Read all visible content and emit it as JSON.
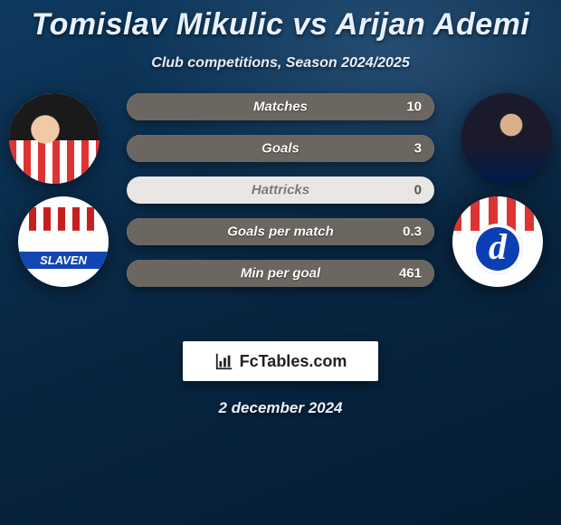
{
  "title": "Tomislav Mikulic vs Arijan Ademi",
  "subtitle": "Club competitions, Season 2024/2025",
  "date": "2 december 2024",
  "brand": {
    "name": "FcTables.com"
  },
  "bars": [
    {
      "label": "Matches",
      "right": "10",
      "fill_pct": 100
    },
    {
      "label": "Goals",
      "right": "3",
      "fill_pct": 100
    },
    {
      "label": "Hattricks",
      "right": "0",
      "fill_pct": 0
    },
    {
      "label": "Goals per match",
      "right": "0.3",
      "fill_pct": 100
    },
    {
      "label": "Min per goal",
      "right": "461",
      "fill_pct": 100
    }
  ],
  "colors": {
    "bar_track": "#e8e7e3",
    "bar_fill": "#6b6760",
    "text_light": "#eaf2ff"
  },
  "players": {
    "left": {
      "name": "Tomislav Mikulic",
      "club": "Slaven"
    },
    "right": {
      "name": "Arijan Ademi",
      "club": "Dinamo Zagreb"
    }
  }
}
